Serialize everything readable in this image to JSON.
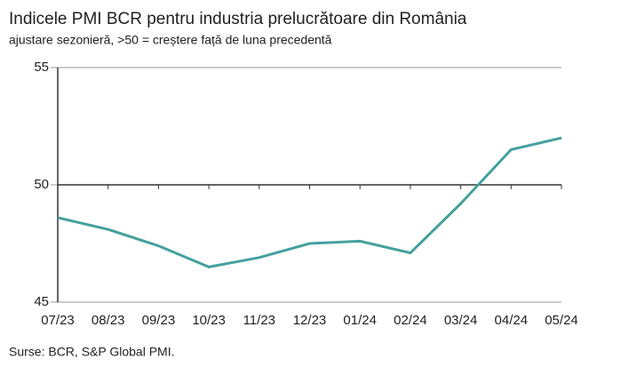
{
  "chart_data": {
    "type": "line",
    "title": "Indicele PMI BCR pentru industria prelucrătoare din România",
    "subtitle": "ajustare sezonieră, >50 = creștere față de luna precedentă",
    "source": "Surse: BCR, S&P Global PMI.",
    "categories": [
      "07/23",
      "08/23",
      "09/23",
      "10/23",
      "11/23",
      "12/23",
      "01/24",
      "02/24",
      "03/24",
      "04/24",
      "05/24"
    ],
    "series": [
      {
        "name": "PMI",
        "color": "#45a09e",
        "values": [
          48.6,
          48.1,
          47.4,
          46.5,
          46.9,
          47.5,
          47.6,
          47.1,
          49.2,
          51.5,
          52.0
        ]
      }
    ],
    "ylim": [
      45,
      55
    ],
    "yticks": [
      45,
      50,
      55
    ],
    "grid": true,
    "baseline": 50
  }
}
